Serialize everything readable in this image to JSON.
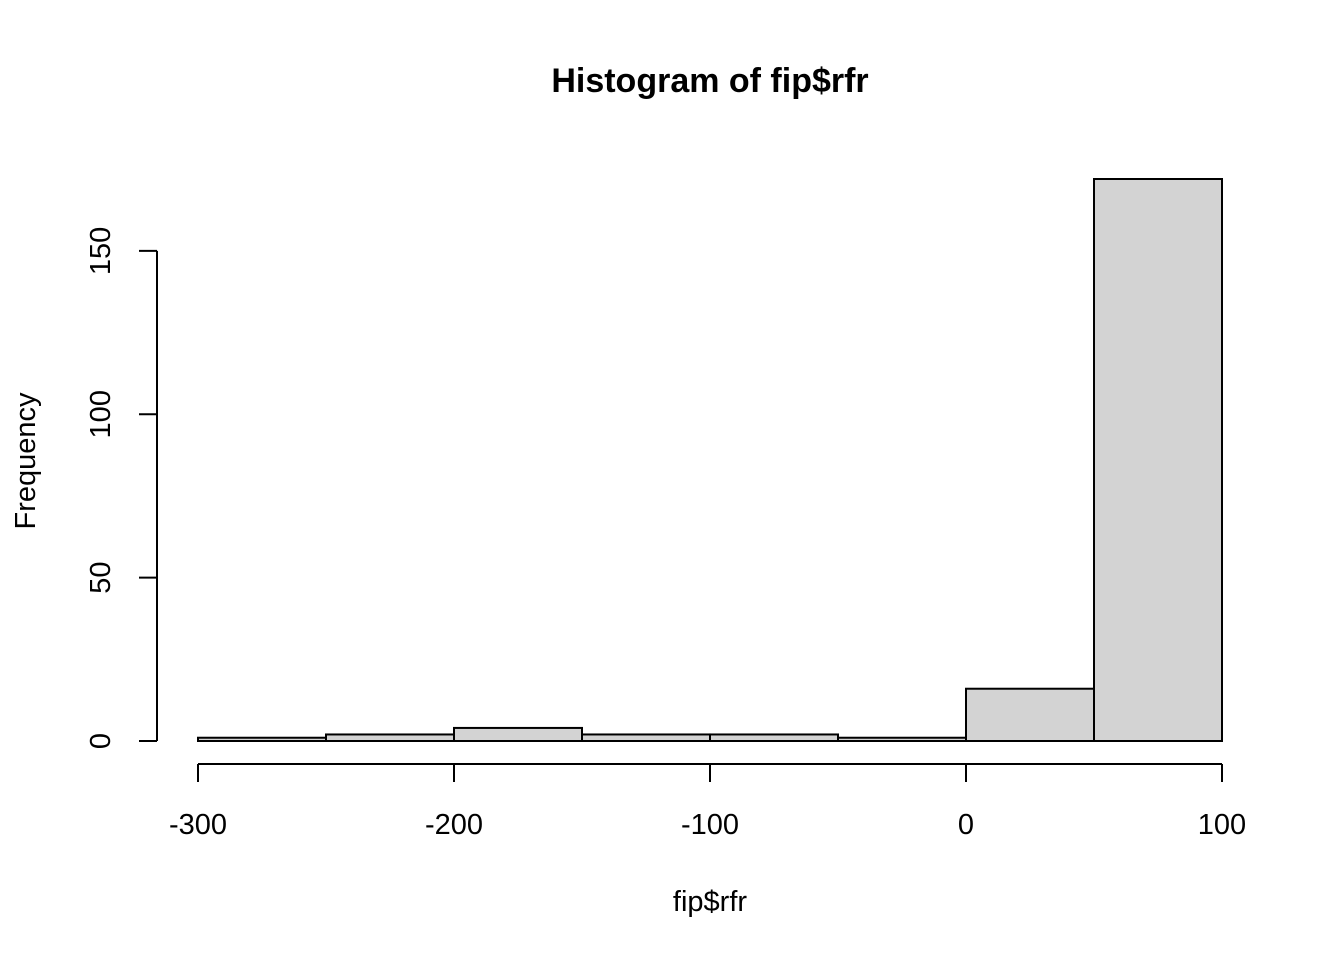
{
  "chart_data": {
    "type": "bar",
    "subtype": "histogram",
    "title": "Histogram of fip$rfr",
    "xlabel": "fip$rfr",
    "ylabel": "Frequency",
    "bin_edges": [
      -300,
      -250,
      -200,
      -150,
      -100,
      -50,
      0,
      50,
      100
    ],
    "values": [
      1,
      2,
      4,
      2,
      2,
      1,
      16,
      172
    ],
    "xlim": [
      -300,
      100
    ],
    "ylim": [
      0,
      172
    ],
    "x_ticks": [
      -300,
      -200,
      -100,
      0,
      100
    ],
    "x_tick_labels": [
      "-300",
      "-200",
      "-100",
      "0",
      "100"
    ],
    "y_ticks": [
      0,
      50,
      100,
      150
    ],
    "y_tick_labels": [
      "0",
      "50",
      "100",
      "150"
    ],
    "bar_fill": "#d3d3d3",
    "bar_stroke": "#000000",
    "grid": false,
    "legend": "none"
  }
}
